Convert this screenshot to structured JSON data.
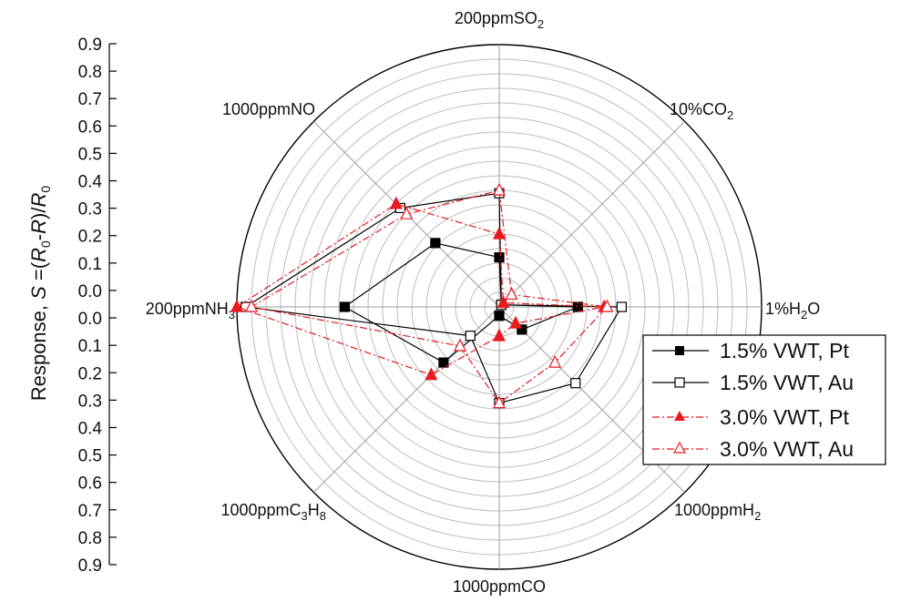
{
  "chart_data": {
    "type": "radar",
    "axis_title": {
      "prefix": "Response, ",
      "var": "S",
      "eq": " =(",
      "r0a": "R",
      "sub0a": "0",
      "dash": "-",
      "r": "R",
      "close": ")/",
      "r0b": "R",
      "sub0b": "0"
    },
    "r_range": [
      0,
      0.9
    ],
    "r_step": 0.05,
    "tick_labels": [
      "0.9",
      "0.8",
      "0.7",
      "0.6",
      "0.5",
      "0.4",
      "0.3",
      "0.2",
      "0.1",
      "0.0",
      "0.0",
      "0.1",
      "0.2",
      "0.3",
      "0.4",
      "0.5",
      "0.6",
      "0.7",
      "0.8",
      "0.9"
    ],
    "categories": [
      {
        "base": "200ppmSO",
        "sub": "2",
        "tail": ""
      },
      {
        "base": "10%CO",
        "sub": "2",
        "tail": ""
      },
      {
        "base": "1%H",
        "sub": "2",
        "tail": "O"
      },
      {
        "base": "1000ppmH",
        "sub": "2",
        "tail": ""
      },
      {
        "base": "1000ppmCO",
        "sub": "",
        "tail": ""
      },
      {
        "base": "1000ppmC",
        "sub": "3",
        "tail": "H",
        "sub2": "8"
      },
      {
        "base": "200ppmNH",
        "sub": "3",
        "tail": ""
      },
      {
        "base": "1000ppmNO",
        "sub": "",
        "tail": ""
      }
    ],
    "series": [
      {
        "name": "1.5% VWT, Pt",
        "color": "#000000",
        "marker": "square-filled",
        "line": "solid",
        "values": [
          0.17,
          0.01,
          0.27,
          0.11,
          0.03,
          0.27,
          0.53,
          0.31
        ]
      },
      {
        "name": "1.5% VWT, Au",
        "color": "#000000",
        "marker": "square-open",
        "line": "solid",
        "values": [
          0.39,
          0.01,
          0.42,
          0.37,
          0.33,
          0.14,
          0.87,
          0.48
        ]
      },
      {
        "name": "3.0% VWT, Pt",
        "color": "#e8191f",
        "marker": "triangle-filled",
        "line": "dashdot",
        "values": [
          0.25,
          0.02,
          0.36,
          0.08,
          0.1,
          0.33,
          0.9,
          0.5
        ]
      },
      {
        "name": "3.0% VWT, Au",
        "color": "#e8191f",
        "marker": "triangle-open",
        "line": "dashdot",
        "values": [
          0.4,
          0.06,
          0.37,
          0.27,
          0.33,
          0.19,
          0.85,
          0.45
        ]
      }
    ],
    "grid": true,
    "legend_position": "bottom-right"
  },
  "icons": {
    "sq_filled": "square-filled-marker",
    "sq_open": "square-open-marker",
    "tri_filled": "triangle-filled-marker",
    "tri_open": "triangle-open-marker"
  }
}
